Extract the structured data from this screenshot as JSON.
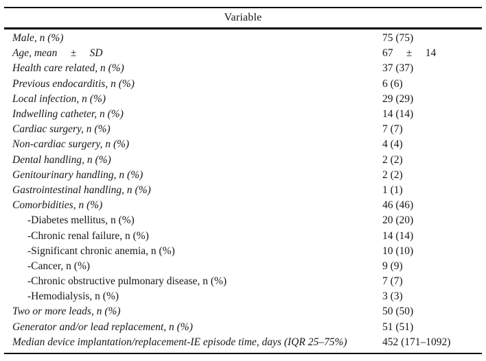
{
  "table": {
    "header": "Variable",
    "rows": [
      {
        "label": "Male, n (%)",
        "value": "75 (75)",
        "style": "italic"
      },
      {
        "label": "Age, mean     ±     SD",
        "value": "67     ±     14",
        "style": "italic"
      },
      {
        "label": "Health care related, n (%)",
        "value": "37 (37)",
        "style": "italic"
      },
      {
        "label": "Previous endocarditis, n (%)",
        "value": "6 (6)",
        "style": "italic"
      },
      {
        "label": "Local infection, n (%)",
        "value": "29 (29)",
        "style": "italic"
      },
      {
        "label": "Indwelling catheter, n (%)",
        "value": "14 (14)",
        "style": "italic"
      },
      {
        "label": "Cardiac surgery, n (%)",
        "value": "7 (7)",
        "style": "italic"
      },
      {
        "label": "Non-cardiac surgery, n (%)",
        "value": "4 (4)",
        "style": "italic"
      },
      {
        "label": "Dental handling, n (%)",
        "value": "2 (2)",
        "style": "italic"
      },
      {
        "label": "Genitourinary handling, n (%)",
        "value": "2 (2)",
        "style": "italic"
      },
      {
        "label": "Gastrointestinal handling, n (%)",
        "value": "1 (1)",
        "style": "italic"
      },
      {
        "label": "Comorbidities, n (%)",
        "value": "46 (46)",
        "style": "italic"
      },
      {
        "label": "-Diabetes mellitus, n (%)",
        "value": "20 (20)",
        "style": "indent"
      },
      {
        "label": "-Chronic renal failure, n (%)",
        "value": "14 (14)",
        "style": "indent"
      },
      {
        "label": "-Significant chronic anemia, n (%)",
        "value": "10 (10)",
        "style": "indent"
      },
      {
        "label": "-Cancer, n (%)",
        "value": "9 (9)",
        "style": "indent"
      },
      {
        "label": "-Chronic obstructive pulmonary disease, n (%)",
        "value": "7 (7)",
        "style": "indent"
      },
      {
        "label": "-Hemodialysis, n (%)",
        "value": "3 (3)",
        "style": "indent"
      },
      {
        "label": "Two or more leads, n (%)",
        "value": "50 (50)",
        "style": "italic"
      },
      {
        "label": "Generator and/or lead replacement, n (%)",
        "value": "51 (51)",
        "style": "italic"
      },
      {
        "label": "Median device implantation/replacement-IE episode time, days (IQR 25–75%)",
        "value": "452 (171–1092)",
        "style": "italic"
      }
    ]
  }
}
